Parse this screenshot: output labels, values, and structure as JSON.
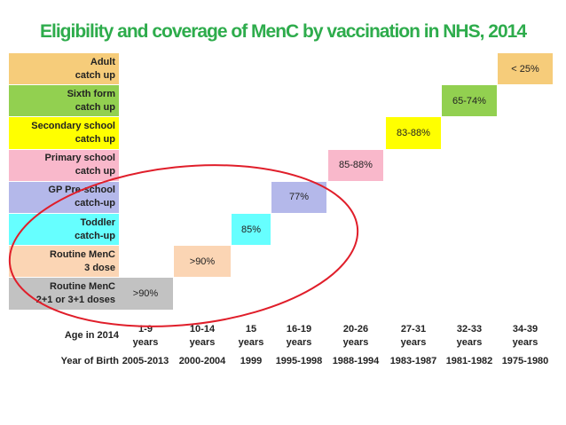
{
  "chart_data": {
    "type": "table",
    "title": "Eligibility and coverage of  MenC by vaccination in NHS, 2014",
    "rows": [
      {
        "label": "Adult\ncatch up",
        "color": "#f6cc7a"
      },
      {
        "label": "Sixth form\ncatch up",
        "color": "#92d050"
      },
      {
        "label": "Secondary school\ncatch up",
        "color": "#ffff00"
      },
      {
        "label": "Primary school\ncatch up",
        "color": "#f9b8cb"
      },
      {
        "label": "GP Pre-school\ncatch-up",
        "color": "#b4b8ea"
      },
      {
        "label": "Toddler\ncatch-up",
        "color": "#66ffff"
      },
      {
        "label": "Routine MenC\n3 dose",
        "color": "#fbd5b4"
      },
      {
        "label": "Routine MenC\n2+1 or 3+1 doses",
        "color": "#c2c2c2"
      }
    ],
    "age_header": "Age in 2014",
    "year_header": "Year of Birth",
    "columns": [
      {
        "age": "1-9\nyears",
        "year": "2005-2013"
      },
      {
        "age": "10-14\nyears",
        "year": "2000-2004"
      },
      {
        "age": "15\nyears",
        "year": "1999"
      },
      {
        "age": "16-19\nyears",
        "year": "1995-1998"
      },
      {
        "age": "20-26\nyears",
        "year": "1988-1994"
      },
      {
        "age": "27-31\nyears",
        "year": "1983-1987"
      },
      {
        "age": "32-33\nyears",
        "year": "1981-1982"
      },
      {
        "age": "34-39\nyears",
        "year": "1975-1980"
      }
    ],
    "coverage": [
      {
        "row": 7,
        "col": 0,
        "value": ">90%"
      },
      {
        "row": 6,
        "col": 1,
        "value": ">90%"
      },
      {
        "row": 5,
        "col": 2,
        "value": "85%"
      },
      {
        "row": 4,
        "col": 3,
        "value": "77%"
      },
      {
        "row": 3,
        "col": 4,
        "value": "85-88%"
      },
      {
        "row": 2,
        "col": 5,
        "value": "83-88%"
      },
      {
        "row": 1,
        "col": 6,
        "value": "65-74%"
      },
      {
        "row": 0,
        "col": 7,
        "value": "< 25%"
      }
    ],
    "highlight_color": "#e01e2a"
  }
}
